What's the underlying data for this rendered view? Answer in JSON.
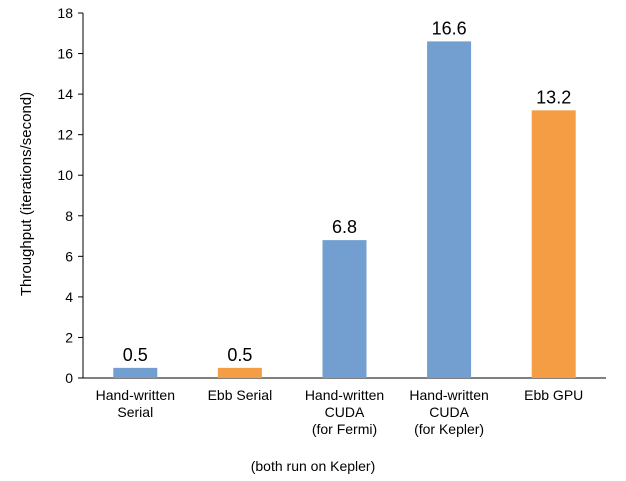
{
  "chart_data": {
    "type": "bar",
    "title": "",
    "ylabel": "Throughput (iterations/second)",
    "ylim": [
      0,
      18
    ],
    "yticks": [
      0,
      2,
      4,
      6,
      8,
      10,
      12,
      14,
      16,
      18
    ],
    "grid": false,
    "legend": "none",
    "categories": [
      [
        "Hand-written",
        "Serial"
      ],
      [
        "Ebb Serial"
      ],
      [
        "Hand-written",
        "CUDA",
        "(for Fermi)"
      ],
      [
        "Hand-written",
        "CUDA",
        "(for Kepler)"
      ],
      [
        "Ebb GPU"
      ]
    ],
    "values": [
      0.5,
      0.5,
      6.8,
      16.6,
      13.2
    ],
    "value_labels": [
      "0.5",
      "0.5",
      "6.8",
      "16.6",
      "13.2"
    ],
    "bar_colors": [
      "#729fcf",
      "#f59d45",
      "#729fcf",
      "#729fcf",
      "#f59d45"
    ],
    "annotation": "(both run on Kepler)"
  }
}
